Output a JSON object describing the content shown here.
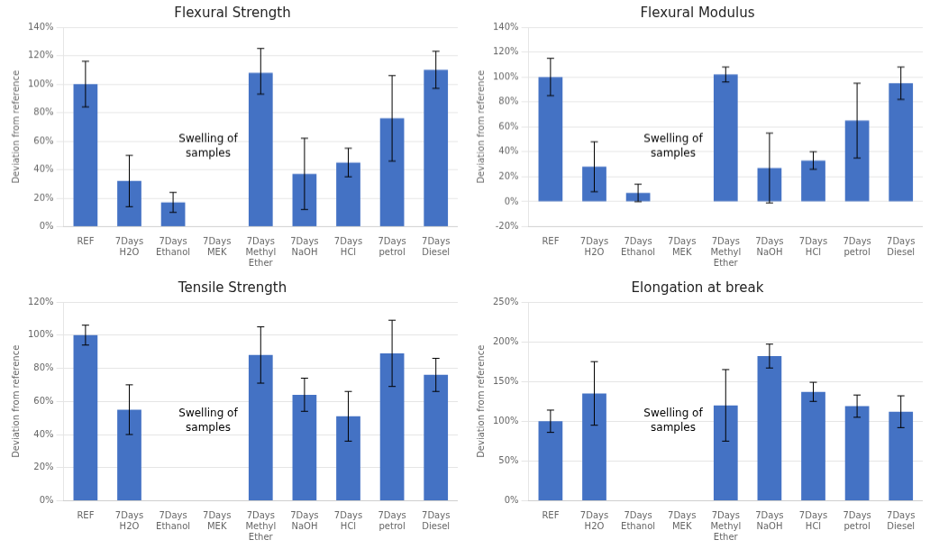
{
  "chart_data": [
    {
      "type": "bar",
      "title": "Flexural Strength",
      "ylabel": "Deviation from reference",
      "color": "#4472C4",
      "grid": true,
      "categories": [
        "REF",
        "7Days\nH2O",
        "7Days\nEthanol",
        "7Days\nMEK",
        "7Days\nMethyl\nEther",
        "7Days\nNaOH",
        "7Days\nHCl",
        "7Days\npetrol",
        "7Days\nDiesel"
      ],
      "values": [
        1.0,
        0.32,
        0.17,
        null,
        1.08,
        0.37,
        0.45,
        0.76,
        1.1
      ],
      "err_lo": [
        0.16,
        0.18,
        0.07,
        null,
        0.15,
        0.25,
        0.1,
        0.3,
        0.13
      ],
      "err_hi": [
        0.16,
        0.18,
        0.07,
        null,
        0.17,
        0.25,
        0.1,
        0.3,
        0.13
      ],
      "ylim": [
        0,
        1.4
      ],
      "yticks": [
        {
          "value": 0,
          "label": "0%"
        },
        {
          "value": 0.2,
          "label": "20%"
        },
        {
          "value": 0.4,
          "label": "40%"
        },
        {
          "value": 0.6,
          "label": "60%"
        },
        {
          "value": 0.8,
          "label": "80%"
        },
        {
          "value": 1.0,
          "label": "100%"
        },
        {
          "value": 1.2,
          "label": "120%"
        },
        {
          "value": 1.4,
          "label": "140%"
        }
      ],
      "annotation": "Swelling of\nsamples"
    },
    {
      "type": "bar",
      "title": "Flexural Modulus",
      "ylabel": "Deviation from reference",
      "color": "#4472C4",
      "grid": true,
      "categories": [
        "REF",
        "7Days\nH2O",
        "7Days\nEthanol",
        "7Days\nMEK",
        "7Days\nMethyl\nEther",
        "7Days\nNaOH",
        "7Days\nHCl",
        "7Days\npetrol",
        "7Days\nDiesel"
      ],
      "values": [
        1.0,
        0.28,
        0.07,
        null,
        1.02,
        0.27,
        0.33,
        0.65,
        0.95
      ],
      "err_lo": [
        0.15,
        0.2,
        0.07,
        null,
        0.06,
        0.28,
        0.07,
        0.3,
        0.13
      ],
      "err_hi": [
        0.15,
        0.2,
        0.07,
        null,
        0.06,
        0.28,
        0.07,
        0.3,
        0.13
      ],
      "ylim": [
        -0.2,
        1.4
      ],
      "yticks": [
        {
          "value": -0.2,
          "label": "-20%"
        },
        {
          "value": 0,
          "label": "0%"
        },
        {
          "value": 0.2,
          "label": "20%"
        },
        {
          "value": 0.4,
          "label": "40%"
        },
        {
          "value": 0.6,
          "label": "60%"
        },
        {
          "value": 0.8,
          "label": "80%"
        },
        {
          "value": 1.0,
          "label": "100%"
        },
        {
          "value": 1.2,
          "label": "120%"
        },
        {
          "value": 1.4,
          "label": "140%"
        }
      ],
      "annotation": "Swelling of\nsamples"
    },
    {
      "type": "bar",
      "title": "Tensile Strength",
      "ylabel": "Deviation from reference",
      "color": "#4472C4",
      "grid": true,
      "categories": [
        "REF",
        "7Days\nH2O",
        "7Days\nEthanol",
        "7Days\nMEK",
        "7Days\nMethyl\nEther",
        "7Days\nNaOH",
        "7Days\nHCl",
        "7Days\npetrol",
        "7Days\nDiesel"
      ],
      "values": [
        1.0,
        0.55,
        null,
        null,
        0.88,
        0.64,
        0.51,
        0.89,
        0.76
      ],
      "err_lo": [
        0.06,
        0.15,
        null,
        null,
        0.17,
        0.1,
        0.15,
        0.2,
        0.1
      ],
      "err_hi": [
        0.06,
        0.15,
        null,
        null,
        0.17,
        0.1,
        0.15,
        0.2,
        0.1
      ],
      "ylim": [
        0,
        1.2
      ],
      "yticks": [
        {
          "value": 0,
          "label": "0%"
        },
        {
          "value": 0.2,
          "label": "20%"
        },
        {
          "value": 0.4,
          "label": "40%"
        },
        {
          "value": 0.6,
          "label": "60%"
        },
        {
          "value": 0.8,
          "label": "80%"
        },
        {
          "value": 1.0,
          "label": "100%"
        },
        {
          "value": 1.2,
          "label": "120%"
        }
      ],
      "annotation": "Swelling of\nsamples"
    },
    {
      "type": "bar",
      "title": "Elongation at break",
      "ylabel": "Deviation from reference",
      "color": "#4472C4",
      "grid": true,
      "categories": [
        "REF",
        "7Days\nH2O",
        "7Days\nEthanol",
        "7Days\nMEK",
        "7Days\nMethyl\nEther",
        "7Days\nNaOH",
        "7Days\nHCl",
        "7Days\npetrol",
        "7Days\nDiesel"
      ],
      "values": [
        1.0,
        1.35,
        null,
        null,
        1.2,
        1.82,
        1.37,
        1.19,
        1.12
      ],
      "err_lo": [
        0.14,
        0.4,
        null,
        null,
        0.45,
        0.15,
        0.12,
        0.14,
        0.2
      ],
      "err_hi": [
        0.14,
        0.4,
        null,
        null,
        0.45,
        0.15,
        0.12,
        0.14,
        0.2
      ],
      "ylim": [
        0,
        2.5
      ],
      "yticks": [
        {
          "value": 0,
          "label": "0%"
        },
        {
          "value": 0.5,
          "label": "50%"
        },
        {
          "value": 1.0,
          "label": "100%"
        },
        {
          "value": 1.5,
          "label": "150%"
        },
        {
          "value": 2.0,
          "label": "200%"
        },
        {
          "value": 2.5,
          "label": "250%"
        }
      ],
      "annotation": "Swelling of\nsamples"
    }
  ]
}
